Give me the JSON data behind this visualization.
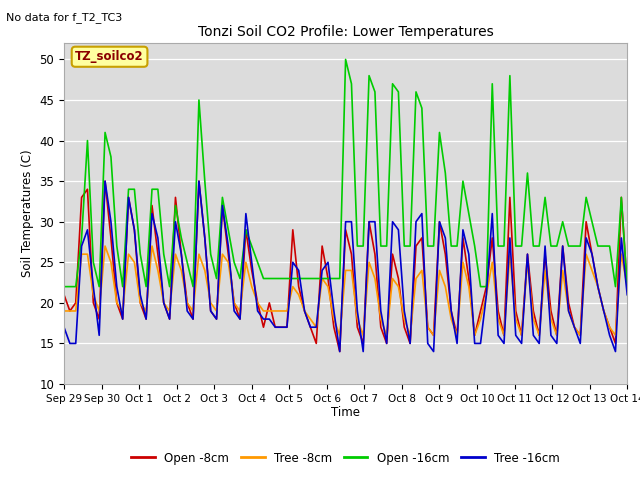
{
  "title": "Tonzi Soil CO2 Profile: Lower Temperatures",
  "subtitle": "No data for f_T2_TC3",
  "ylabel": "Soil Temperatures (C)",
  "xlabel": "Time",
  "ylim": [
    10,
    52
  ],
  "yticks": [
    10,
    15,
    20,
    25,
    30,
    35,
    40,
    45,
    50
  ],
  "bg_color": "#dcdcdc",
  "annotation_text": "TZ_soilco2",
  "annotation_bg": "#ffffa0",
  "annotation_border": "#c8a000",
  "annotation_text_color": "#8b0000",
  "series_colors": {
    "open_8cm": "#cc0000",
    "tree_8cm": "#ff9900",
    "open_16cm": "#00cc00",
    "tree_16cm": "#0000cc"
  },
  "series_labels": [
    "Open -8cm",
    "Tree -8cm",
    "Open -16cm",
    "Tree -16cm"
  ],
  "x_tick_labels": [
    "Sep 29",
    "Sep 30",
    "Oct 1",
    "Oct 2",
    "Oct 3",
    "Oct 4",
    "Oct 5",
    "Oct 6",
    "Oct 7",
    "Oct 8",
    "Oct 9",
    "Oct 10",
    "Oct 11",
    "Oct 12",
    "Oct 13",
    "Oct 14"
  ],
  "n_points": 97,
  "open_8cm": [
    21,
    19,
    20,
    33,
    34,
    20,
    18,
    35,
    28,
    20,
    18,
    33,
    29,
    20,
    18,
    32,
    26,
    20,
    18,
    33,
    26,
    20,
    18,
    35,
    28,
    19,
    18,
    32,
    26,
    20,
    18,
    29,
    24,
    20,
    17,
    20,
    17,
    17,
    17,
    29,
    22,
    19,
    17,
    15,
    27,
    23,
    17,
    14,
    29,
    26,
    17,
    15,
    30,
    26,
    17,
    15,
    26,
    23,
    17,
    15,
    27,
    28,
    17,
    16,
    30,
    26,
    19,
    16,
    28,
    23,
    16,
    19,
    22,
    28,
    19,
    16,
    33,
    19,
    16,
    26,
    19,
    16,
    26,
    19,
    16,
    27,
    20,
    17,
    16,
    30,
    26,
    22,
    19,
    17,
    15,
    33,
    22
  ],
  "tree_8cm": [
    19,
    19,
    19,
    26,
    26,
    21,
    19,
    27,
    25,
    20,
    19,
    26,
    25,
    20,
    19,
    27,
    24,
    20,
    19,
    26,
    24,
    20,
    19,
    26,
    24,
    20,
    19,
    26,
    25,
    20,
    19,
    25,
    22,
    20,
    19,
    19,
    19,
    19,
    19,
    22,
    21,
    19,
    18,
    17,
    23,
    22,
    18,
    16,
    24,
    24,
    18,
    16,
    25,
    23,
    18,
    16,
    23,
    22,
    18,
    16,
    23,
    24,
    17,
    16,
    24,
    22,
    18,
    16,
    25,
    22,
    16,
    18,
    21,
    25,
    18,
    16,
    26,
    18,
    16,
    25,
    18,
    16,
    24,
    18,
    16,
    24,
    19,
    17,
    16,
    26,
    24,
    22,
    19,
    17,
    16,
    26,
    22
  ],
  "open_16cm": [
    22,
    22,
    22,
    28,
    40,
    25,
    22,
    41,
    38,
    27,
    22,
    34,
    34,
    26,
    22,
    34,
    34,
    26,
    22,
    32,
    28,
    25,
    22,
    45,
    35,
    26,
    23,
    33,
    29,
    25,
    23,
    29,
    27,
    25,
    23,
    23,
    23,
    23,
    23,
    23,
    23,
    23,
    23,
    23,
    23,
    23,
    23,
    23,
    50,
    47,
    27,
    27,
    48,
    46,
    27,
    27,
    47,
    46,
    27,
    27,
    46,
    44,
    27,
    27,
    41,
    36,
    27,
    27,
    35,
    31,
    27,
    22,
    22,
    47,
    27,
    27,
    48,
    27,
    27,
    36,
    27,
    27,
    33,
    27,
    27,
    30,
    27,
    27,
    27,
    33,
    30,
    27,
    27,
    27,
    22,
    33,
    22
  ],
  "tree_16cm": [
    17,
    15,
    15,
    27,
    29,
    22,
    16,
    35,
    30,
    22,
    18,
    33,
    29,
    21,
    18,
    31,
    28,
    20,
    18,
    30,
    26,
    19,
    18,
    35,
    28,
    19,
    18,
    32,
    27,
    19,
    18,
    31,
    25,
    19,
    18,
    18,
    17,
    17,
    17,
    25,
    24,
    19,
    17,
    17,
    24,
    25,
    19,
    14,
    30,
    30,
    19,
    14,
    30,
    30,
    19,
    15,
    30,
    29,
    19,
    15,
    30,
    31,
    15,
    14,
    30,
    28,
    19,
    15,
    29,
    26,
    15,
    15,
    21,
    31,
    16,
    15,
    28,
    16,
    15,
    26,
    16,
    15,
    27,
    16,
    15,
    27,
    19,
    17,
    15,
    28,
    26,
    22,
    19,
    16,
    14,
    28,
    21
  ]
}
